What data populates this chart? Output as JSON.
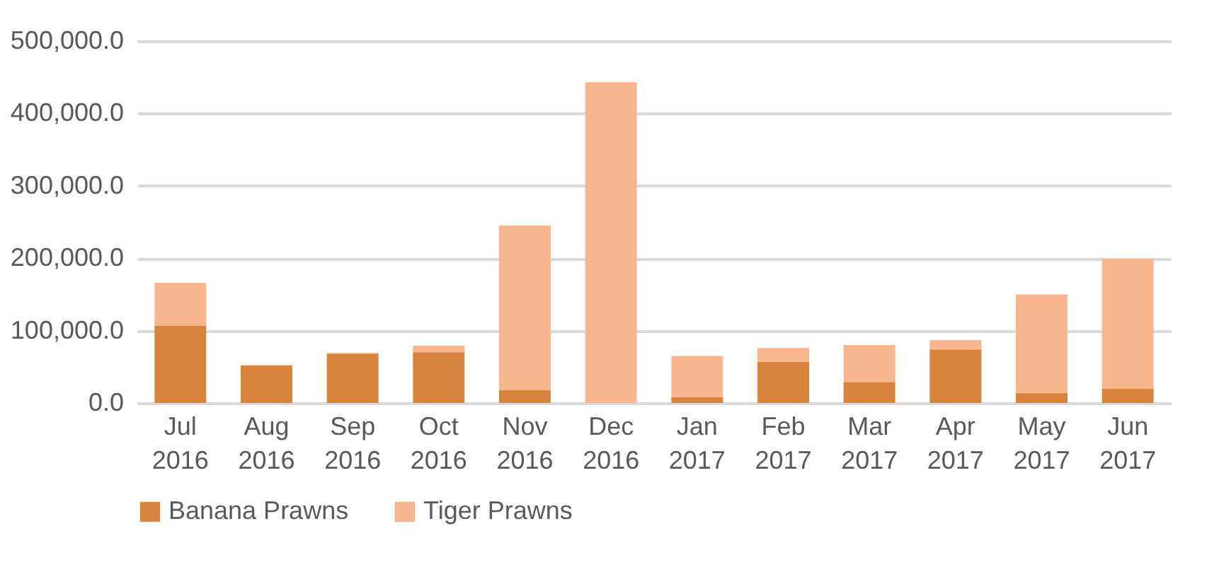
{
  "chart_data": {
    "type": "bar",
    "stacked": true,
    "categories": [
      "Jul 2016",
      "Aug 2016",
      "Sep 2016",
      "Oct 2016",
      "Nov 2016",
      "Dec 2016",
      "Jan 2017",
      "Feb 2017",
      "Mar 2017",
      "Apr 2017",
      "May 2017",
      "Jun 2017"
    ],
    "series": [
      {
        "name": "Banana Prawns",
        "color": "#d9843e",
        "values": [
          107000,
          52000,
          68000,
          70000,
          18000,
          0,
          8000,
          57000,
          29000,
          74000,
          14000,
          20000
        ]
      },
      {
        "name": "Tiger Prawns",
        "color": "#f8b68f",
        "values": [
          59000,
          0,
          1000,
          9000,
          227000,
          443000,
          57000,
          19000,
          51000,
          13000,
          136000,
          179000
        ]
      }
    ],
    "ylim": [
      0,
      500000
    ],
    "yticks": [
      {
        "value": 0,
        "label": "0.0"
      },
      {
        "value": 100000,
        "label": "100,000.0"
      },
      {
        "value": 200000,
        "label": "200,000.0"
      },
      {
        "value": 300000,
        "label": "300,000.0"
      },
      {
        "value": 400000,
        "label": "400,000.0"
      },
      {
        "value": 500000,
        "label": "500,000.0"
      }
    ],
    "grid": "y",
    "legend": "bottom"
  }
}
